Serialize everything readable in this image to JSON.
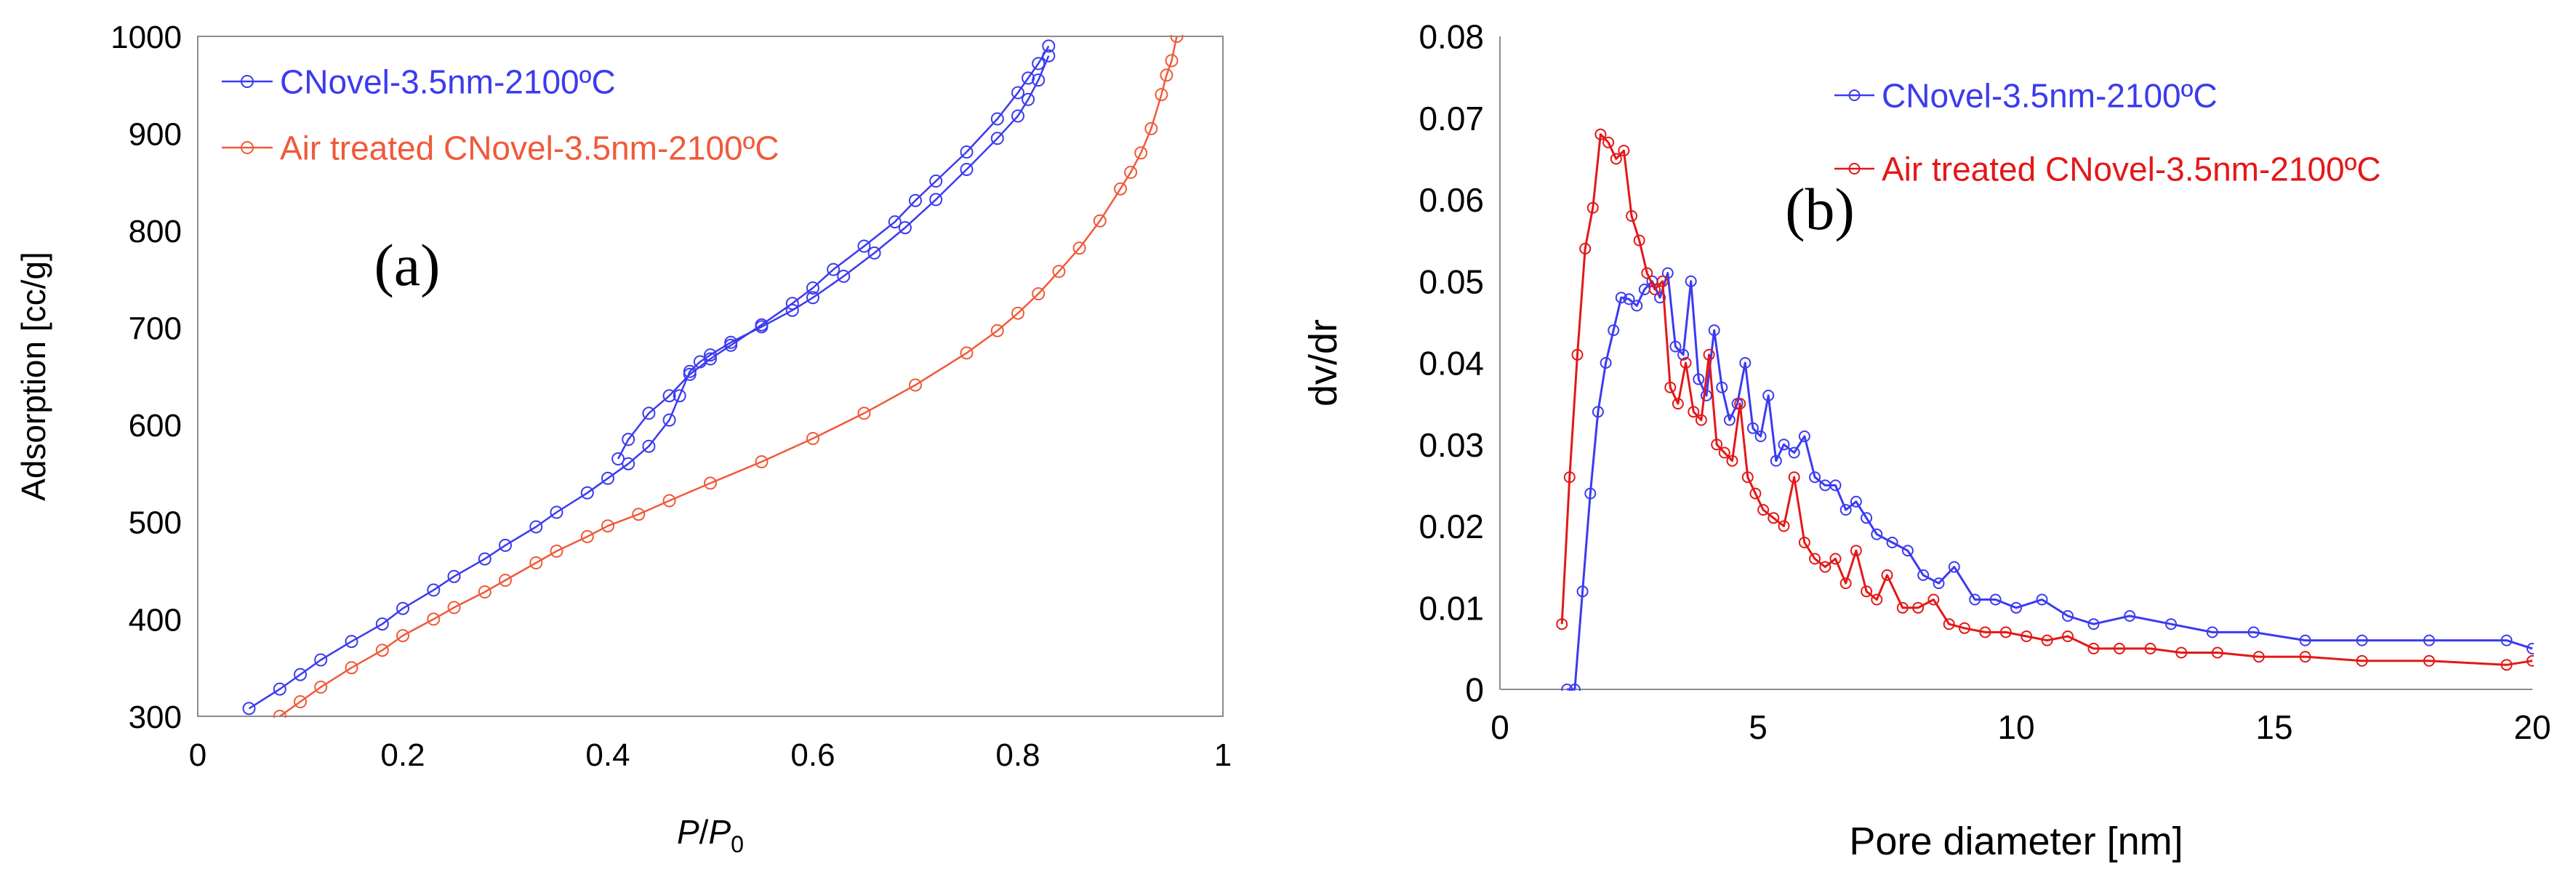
{
  "chart_data": [
    {
      "id": "a",
      "type": "line",
      "panel_label": "(a)",
      "title": "",
      "xlabel_main": "P",
      "xlabel_sep": "/",
      "xlabel_p": "P",
      "xlabel_sub": "0",
      "ylabel": "Adsorption [cc/g]",
      "xlim": [
        0,
        1
      ],
      "ylim": [
        300,
        1000
      ],
      "xticks": [
        0,
        0.2,
        0.4,
        0.6,
        0.8,
        1
      ],
      "xtick_labels": [
        "0",
        "0.2",
        "0.4",
        "0.6",
        "0.8",
        "1"
      ],
      "yticks": [
        300,
        400,
        500,
        600,
        700,
        800,
        900,
        1000
      ],
      "ytick_labels": [
        "300",
        "400",
        "500",
        "600",
        "700",
        "800",
        "900",
        "1000"
      ],
      "grid": false,
      "legend_position": "top-left",
      "series": [
        {
          "name": "CNovel-3.5nm-2100ºC (adsorption)",
          "legend_label": "CNovel-3.5nm-2100ºC",
          "show_in_legend": true,
          "color": "#3b3bf0",
          "x": [
            0.05,
            0.08,
            0.1,
            0.12,
            0.15,
            0.18,
            0.2,
            0.23,
            0.25,
            0.28,
            0.3,
            0.33,
            0.35,
            0.38,
            0.4,
            0.42,
            0.44,
            0.46,
            0.47,
            0.48,
            0.49,
            0.5,
            0.52,
            0.55,
            0.58,
            0.6,
            0.63,
            0.66,
            0.69,
            0.72,
            0.75,
            0.78,
            0.8,
            0.81,
            0.82,
            0.83
          ],
          "y": [
            308,
            328,
            343,
            358,
            377,
            395,
            411,
            430,
            444,
            462,
            476,
            495,
            510,
            530,
            545,
            560,
            578,
            605,
            630,
            655,
            665,
            672,
            685,
            701,
            718,
            731,
            753,
            777,
            803,
            832,
            863,
            895,
            918,
            935,
            955,
            980
          ]
        },
        {
          "name": "CNovel-3.5nm-2100ºC (desorption)",
          "legend_label": "",
          "show_in_legend": false,
          "color": "#3b3bf0",
          "x": [
            0.83,
            0.82,
            0.81,
            0.8,
            0.78,
            0.75,
            0.72,
            0.7,
            0.68,
            0.65,
            0.62,
            0.6,
            0.58,
            0.55,
            0.52,
            0.5,
            0.48,
            0.46,
            0.44,
            0.42,
            0.41
          ],
          "y": [
            990,
            972,
            957,
            942,
            915,
            881,
            851,
            831,
            809,
            784,
            760,
            741,
            725,
            703,
            682,
            668,
            652,
            630,
            612,
            585,
            565
          ]
        },
        {
          "name": "Air treated CNovel-3.5nm-2100ºC",
          "legend_label": "Air treated CNovel-3.5nm-2100ºC",
          "show_in_legend": true,
          "color": "#f05a3a",
          "x": [
            0.08,
            0.1,
            0.12,
            0.15,
            0.18,
            0.2,
            0.23,
            0.25,
            0.28,
            0.3,
            0.33,
            0.35,
            0.38,
            0.4,
            0.43,
            0.46,
            0.5,
            0.55,
            0.6,
            0.65,
            0.7,
            0.75,
            0.78,
            0.8,
            0.82,
            0.84,
            0.86,
            0.88,
            0.9,
            0.91,
            0.92,
            0.93,
            0.94,
            0.945,
            0.95,
            0.955
          ],
          "y": [
            300,
            315,
            330,
            350,
            368,
            383,
            400,
            412,
            428,
            440,
            458,
            470,
            485,
            496,
            508,
            522,
            540,
            562,
            586,
            612,
            641,
            674,
            697,
            715,
            735,
            758,
            782,
            810,
            843,
            860,
            880,
            905,
            940,
            960,
            975,
            1000
          ]
        }
      ]
    },
    {
      "id": "b",
      "type": "line",
      "panel_label": "(b)",
      "title": "",
      "xlabel": "Pore diameter [nm]",
      "ylabel": "dv/dr",
      "xlim": [
        0,
        20
      ],
      "ylim": [
        0,
        0.08
      ],
      "xticks": [
        0,
        5,
        10,
        15,
        20
      ],
      "xtick_labels": [
        "0",
        "5",
        "10",
        "15",
        "20"
      ],
      "yticks": [
        0,
        0.01,
        0.02,
        0.03,
        0.04,
        0.05,
        0.06,
        0.07,
        0.08
      ],
      "ytick_labels": [
        "0",
        "0.01",
        "0.02",
        "0.03",
        "0.04",
        "0.05",
        "0.06",
        "0.07",
        "0.08"
      ],
      "grid": false,
      "legend_position": "top-right",
      "series": [
        {
          "name": "CNovel-3.5nm-2100ºC",
          "legend_label": "CNovel-3.5nm-2100ºC",
          "show_in_legend": true,
          "color": "#3b3bf0",
          "marker": "circle",
          "x": [
            1.3,
            1.45,
            1.6,
            1.75,
            1.9,
            2.05,
            2.2,
            2.35,
            2.5,
            2.65,
            2.8,
            2.95,
            3.1,
            3.25,
            3.4,
            3.55,
            3.7,
            3.85,
            4.0,
            4.15,
            4.3,
            4.45,
            4.6,
            4.75,
            4.9,
            5.05,
            5.2,
            5.35,
            5.5,
            5.7,
            5.9,
            6.1,
            6.3,
            6.5,
            6.7,
            6.9,
            7.1,
            7.3,
            7.6,
            7.9,
            8.2,
            8.5,
            8.8,
            9.2,
            9.6,
            10.0,
            10.5,
            11.0,
            11.5,
            12.2,
            13.0,
            13.8,
            14.6,
            15.6,
            16.7,
            18.0,
            19.5,
            20.0
          ],
          "y": [
            0.0,
            0.0,
            0.012,
            0.024,
            0.034,
            0.04,
            0.044,
            0.048,
            0.0478,
            0.047,
            0.049,
            0.05,
            0.048,
            0.051,
            0.042,
            0.041,
            0.05,
            0.038,
            0.036,
            0.044,
            0.037,
            0.033,
            0.035,
            0.04,
            0.032,
            0.031,
            0.036,
            0.028,
            0.03,
            0.029,
            0.031,
            0.026,
            0.025,
            0.025,
            0.022,
            0.023,
            0.021,
            0.019,
            0.018,
            0.017,
            0.014,
            0.013,
            0.015,
            0.011,
            0.011,
            0.01,
            0.011,
            0.009,
            0.008,
            0.009,
            0.008,
            0.007,
            0.007,
            0.006,
            0.006,
            0.006,
            0.006,
            0.005
          ]
        },
        {
          "name": "Air treated CNovel-3.5nm-2100ºC",
          "legend_label": "Air treated CNovel-3.5nm-2100ºC",
          "show_in_legend": true,
          "color": "#e31818",
          "marker": "circle",
          "x": [
            1.2,
            1.35,
            1.5,
            1.65,
            1.8,
            1.95,
            2.1,
            2.25,
            2.4,
            2.55,
            2.7,
            2.85,
            3.0,
            3.15,
            3.3,
            3.45,
            3.6,
            3.75,
            3.9,
            4.05,
            4.2,
            4.35,
            4.5,
            4.65,
            4.8,
            4.95,
            5.1,
            5.3,
            5.5,
            5.7,
            5.9,
            6.1,
            6.3,
            6.5,
            6.7,
            6.9,
            7.1,
            7.3,
            7.5,
            7.8,
            8.1,
            8.4,
            8.7,
            9.0,
            9.4,
            9.8,
            10.2,
            10.6,
            11.0,
            11.5,
            12.0,
            12.6,
            13.2,
            13.9,
            14.7,
            15.6,
            16.7,
            18.0,
            19.5,
            20.0
          ],
          "y": [
            0.008,
            0.026,
            0.041,
            0.054,
            0.059,
            0.068,
            0.067,
            0.065,
            0.066,
            0.058,
            0.055,
            0.051,
            0.049,
            0.05,
            0.037,
            0.035,
            0.04,
            0.034,
            0.033,
            0.041,
            0.03,
            0.029,
            0.028,
            0.035,
            0.026,
            0.024,
            0.022,
            0.021,
            0.02,
            0.026,
            0.018,
            0.016,
            0.015,
            0.016,
            0.013,
            0.017,
            0.012,
            0.011,
            0.014,
            0.01,
            0.01,
            0.011,
            0.008,
            0.0075,
            0.007,
            0.007,
            0.0065,
            0.006,
            0.0065,
            0.005,
            0.005,
            0.005,
            0.0045,
            0.0045,
            0.004,
            0.004,
            0.0035,
            0.0035,
            0.003,
            0.0035
          ]
        }
      ]
    }
  ]
}
